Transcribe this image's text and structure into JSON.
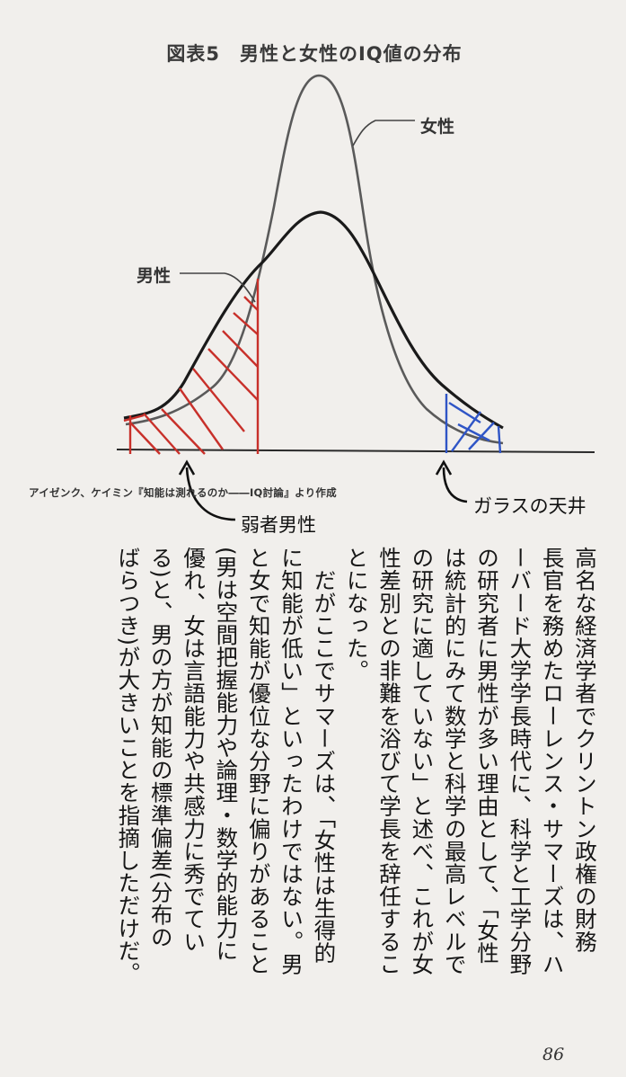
{
  "figure": {
    "title": "図表5　男性と女性のIQ値の分布",
    "female_label": "女性",
    "male_label": "男性",
    "caption": "アイゼンク、ケイミン『知能は測れるのか――IQ討論』より作成"
  },
  "annotations": {
    "weak_males": "弱者男性",
    "glass_ceiling": "ガラスの天井",
    "weak_males_color": "#c8302a",
    "glass_ceiling_color": "#2f55c6"
  },
  "body_lines": [
    "高名な経済学者でクリントン政権の財務",
    "長官を務めたローレンス・サマーズは、ハ",
    "ーバード大学学長時代に、科学と工学分野",
    "の研究者に男性が多い理由として、「女性",
    "は統計的にみて数学と科学の最高レベルで",
    "の研究に適していない」と述べ、これが女",
    "性差別との非難を浴びて学長を辞任するこ",
    "とになった。",
    "　だがここでサマーズは、「女性は生得的",
    "に知能が低い」といったわけではない。男",
    "と女で知能が優位な分野に偏りがあること",
    "(男は空間把握能力や論理・数学的能力に",
    "優れ、女は言語能力や共感力に秀でてい",
    "る)と、男の方が知能の標準偏差(分布の",
    "ばらつき)が大きいことを指摘しただけだ。"
  ],
  "page_number": "86"
}
